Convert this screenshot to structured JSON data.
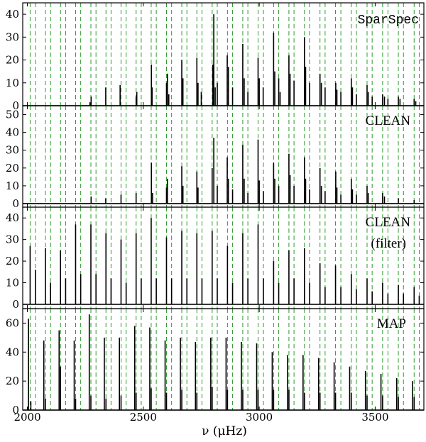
{
  "chart_data": {
    "type": "bar",
    "xlabel": "ν (μHz)",
    "xlim": [
      1980,
      3710
    ],
    "x_ticks": [
      "2000",
      "2500",
      "3000",
      "3500"
    ],
    "x_tick_values": [
      2000,
      2500,
      3000,
      3500
    ],
    "reference_line_color": "#2a9d2a",
    "bar_color": "#000000",
    "reference_lines": [
      2012,
      2035,
      2078,
      2100,
      2143,
      2165,
      2208,
      2230,
      2274,
      2296,
      2339,
      2361,
      2404,
      2426,
      2469,
      2491,
      2534,
      2556,
      2600,
      2622,
      2666,
      2688,
      2731,
      2753,
      2797,
      2819,
      2863,
      2885,
      2929,
      2951,
      2995,
      3018,
      3062,
      3084,
      3128,
      3150,
      3195,
      3217,
      3262,
      3284,
      3329,
      3352,
      3397,
      3419,
      3465,
      3487,
      3532,
      3555,
      3600,
      3622,
      3668,
      3690
    ],
    "panels": [
      {
        "label": "SparSpec",
        "label_lines": [
          "SparSpec"
        ],
        "ylim": [
          0,
          45
        ],
        "y_ticks": [
          "0",
          "10",
          "20",
          "30",
          "40"
        ],
        "y_tick_values": [
          0,
          10,
          20,
          30,
          40
        ],
        "peaks": [
          [
            2270,
            1.5
          ],
          [
            2275,
            4
          ],
          [
            2338,
            8
          ],
          [
            2400,
            9
          ],
          [
            2469,
            4
          ],
          [
            2472,
            6
          ],
          [
            2535,
            18
          ],
          [
            2538,
            8
          ],
          [
            2600,
            10
          ],
          [
            2604,
            14
          ],
          [
            2610,
            5
          ],
          [
            2666,
            20
          ],
          [
            2671,
            12
          ],
          [
            2731,
            21
          ],
          [
            2736,
            10
          ],
          [
            2750,
            6
          ],
          [
            2800,
            18
          ],
          [
            2804,
            40
          ],
          [
            2810,
            8
          ],
          [
            2819,
            10
          ],
          [
            2862,
            22
          ],
          [
            2867,
            17
          ],
          [
            2885,
            8
          ],
          [
            2929,
            27
          ],
          [
            2935,
            12
          ],
          [
            2951,
            6
          ],
          [
            2995,
            21
          ],
          [
            3000,
            12
          ],
          [
            3017,
            8
          ],
          [
            3062,
            32
          ],
          [
            3067,
            15
          ],
          [
            3084,
            12
          ],
          [
            3090,
            6
          ],
          [
            3128,
            22
          ],
          [
            3133,
            14
          ],
          [
            3150,
            11
          ],
          [
            3195,
            30
          ],
          [
            3200,
            17
          ],
          [
            3217,
            10
          ],
          [
            3262,
            14
          ],
          [
            3268,
            10
          ],
          [
            3284,
            8
          ],
          [
            3330,
            10
          ],
          [
            3335,
            7
          ],
          [
            3352,
            6
          ],
          [
            3397,
            12
          ],
          [
            3402,
            8
          ],
          [
            3419,
            5
          ],
          [
            3465,
            9
          ],
          [
            3470,
            6
          ],
          [
            3487,
            4
          ],
          [
            3532,
            5
          ],
          [
            3540,
            4
          ],
          [
            3555,
            3
          ],
          [
            3600,
            4
          ],
          [
            3607,
            3
          ],
          [
            3668,
            3
          ],
          [
            3675,
            2
          ]
        ]
      },
      {
        "label": "CLEAN",
        "label_lines": [
          "CLEAN"
        ],
        "ylim": [
          -2,
          55
        ],
        "y_ticks": [
          "0",
          "10",
          "20",
          "30",
          "40",
          "50"
        ],
        "y_tick_values": [
          0,
          10,
          20,
          30,
          40,
          50
        ],
        "peaks": [
          [
            2275,
            4
          ],
          [
            2338,
            3
          ],
          [
            2404,
            5
          ],
          [
            2469,
            6
          ],
          [
            2535,
            23
          ],
          [
            2540,
            6
          ],
          [
            2600,
            9
          ],
          [
            2604,
            14
          ],
          [
            2666,
            21
          ],
          [
            2671,
            10
          ],
          [
            2731,
            18
          ],
          [
            2736,
            9
          ],
          [
            2797,
            20
          ],
          [
            2804,
            37
          ],
          [
            2819,
            10
          ],
          [
            2862,
            26
          ],
          [
            2867,
            14
          ],
          [
            2885,
            8
          ],
          [
            2929,
            33
          ],
          [
            2935,
            14
          ],
          [
            2951,
            6
          ],
          [
            2995,
            36
          ],
          [
            3000,
            13
          ],
          [
            3018,
            7
          ],
          [
            3062,
            23
          ],
          [
            3067,
            14
          ],
          [
            3084,
            10
          ],
          [
            3128,
            28
          ],
          [
            3133,
            16
          ],
          [
            3150,
            10
          ],
          [
            3195,
            26
          ],
          [
            3200,
            14
          ],
          [
            3217,
            8
          ],
          [
            3262,
            20
          ],
          [
            3268,
            10
          ],
          [
            3284,
            7
          ],
          [
            3330,
            18
          ],
          [
            3335,
            9
          ],
          [
            3352,
            5
          ],
          [
            3397,
            14
          ],
          [
            3402,
            8
          ],
          [
            3419,
            5
          ],
          [
            3465,
            10
          ],
          [
            3470,
            6
          ],
          [
            3532,
            6
          ],
          [
            3540,
            4
          ],
          [
            3600,
            3
          ],
          [
            3668,
            2
          ]
        ]
      },
      {
        "label": "CLEAN (filter)",
        "label_lines": [
          "CLEAN",
          "(filter)"
        ],
        "ylim": [
          -2,
          45
        ],
        "y_ticks": [
          "0",
          "10",
          "20",
          "30",
          "40"
        ],
        "y_tick_values": [
          0,
          10,
          20,
          30,
          40
        ],
        "peaks": [
          [
            2012,
            27
          ],
          [
            2035,
            16
          ],
          [
            2078,
            26
          ],
          [
            2100,
            10
          ],
          [
            2143,
            25
          ],
          [
            2165,
            12
          ],
          [
            2208,
            37
          ],
          [
            2230,
            14
          ],
          [
            2274,
            37
          ],
          [
            2296,
            14
          ],
          [
            2339,
            33
          ],
          [
            2361,
            12
          ],
          [
            2404,
            30
          ],
          [
            2426,
            10
          ],
          [
            2469,
            33
          ],
          [
            2491,
            12
          ],
          [
            2534,
            40
          ],
          [
            2556,
            12
          ],
          [
            2600,
            31
          ],
          [
            2622,
            12
          ],
          [
            2666,
            34
          ],
          [
            2688,
            12
          ],
          [
            2731,
            33
          ],
          [
            2753,
            12
          ],
          [
            2797,
            34
          ],
          [
            2819,
            12
          ],
          [
            2863,
            27
          ],
          [
            2885,
            10
          ],
          [
            2929,
            33
          ],
          [
            2951,
            12
          ],
          [
            2995,
            37
          ],
          [
            3018,
            12
          ],
          [
            3062,
            20
          ],
          [
            3084,
            10
          ],
          [
            3128,
            25
          ],
          [
            3150,
            12
          ],
          [
            3195,
            26
          ],
          [
            3217,
            10
          ],
          [
            3262,
            19
          ],
          [
            3284,
            8
          ],
          [
            3329,
            18
          ],
          [
            3352,
            8
          ],
          [
            3397,
            14
          ],
          [
            3419,
            7
          ],
          [
            3465,
            12
          ],
          [
            3487,
            6
          ],
          [
            3532,
            10
          ],
          [
            3555,
            5
          ],
          [
            3600,
            9
          ],
          [
            3622,
            5
          ],
          [
            3668,
            8
          ],
          [
            3690,
            4
          ]
        ]
      },
      {
        "label": "MAP",
        "label_lines": [
          "MAP"
        ],
        "ylim": [
          0,
          70
        ],
        "y_ticks": [
          "0",
          "20",
          "40",
          "60"
        ],
        "y_tick_values": [
          0,
          20,
          40,
          60
        ],
        "peaks": [
          [
            2005,
            63
          ],
          [
            2015,
            6
          ],
          [
            2071,
            48
          ],
          [
            2078,
            8
          ],
          [
            2137,
            55
          ],
          [
            2143,
            30
          ],
          [
            2202,
            48
          ],
          [
            2208,
            8
          ],
          [
            2267,
            66
          ],
          [
            2274,
            10
          ],
          [
            2332,
            50
          ],
          [
            2339,
            8
          ],
          [
            2397,
            50
          ],
          [
            2404,
            10
          ],
          [
            2463,
            58
          ],
          [
            2469,
            12
          ],
          [
            2528,
            57
          ],
          [
            2534,
            15
          ],
          [
            2594,
            48
          ],
          [
            2600,
            12
          ],
          [
            2660,
            50
          ],
          [
            2666,
            14
          ],
          [
            2725,
            47
          ],
          [
            2731,
            12
          ],
          [
            2791,
            50
          ],
          [
            2797,
            16
          ],
          [
            2857,
            50
          ],
          [
            2863,
            14
          ],
          [
            2923,
            47
          ],
          [
            2929,
            14
          ],
          [
            2989,
            46
          ],
          [
            2995,
            14
          ],
          [
            3056,
            40
          ],
          [
            3062,
            14
          ],
          [
            3122,
            38
          ],
          [
            3128,
            14
          ],
          [
            3189,
            38
          ],
          [
            3195,
            12
          ],
          [
            3256,
            36
          ],
          [
            3262,
            12
          ],
          [
            3323,
            33
          ],
          [
            3329,
            12
          ],
          [
            3390,
            30
          ],
          [
            3397,
            12
          ],
          [
            3458,
            27
          ],
          [
            3465,
            10
          ],
          [
            3525,
            25
          ],
          [
            3532,
            10
          ],
          [
            3593,
            22
          ],
          [
            3600,
            9
          ],
          [
            3661,
            20
          ],
          [
            3668,
            9
          ]
        ]
      }
    ]
  }
}
